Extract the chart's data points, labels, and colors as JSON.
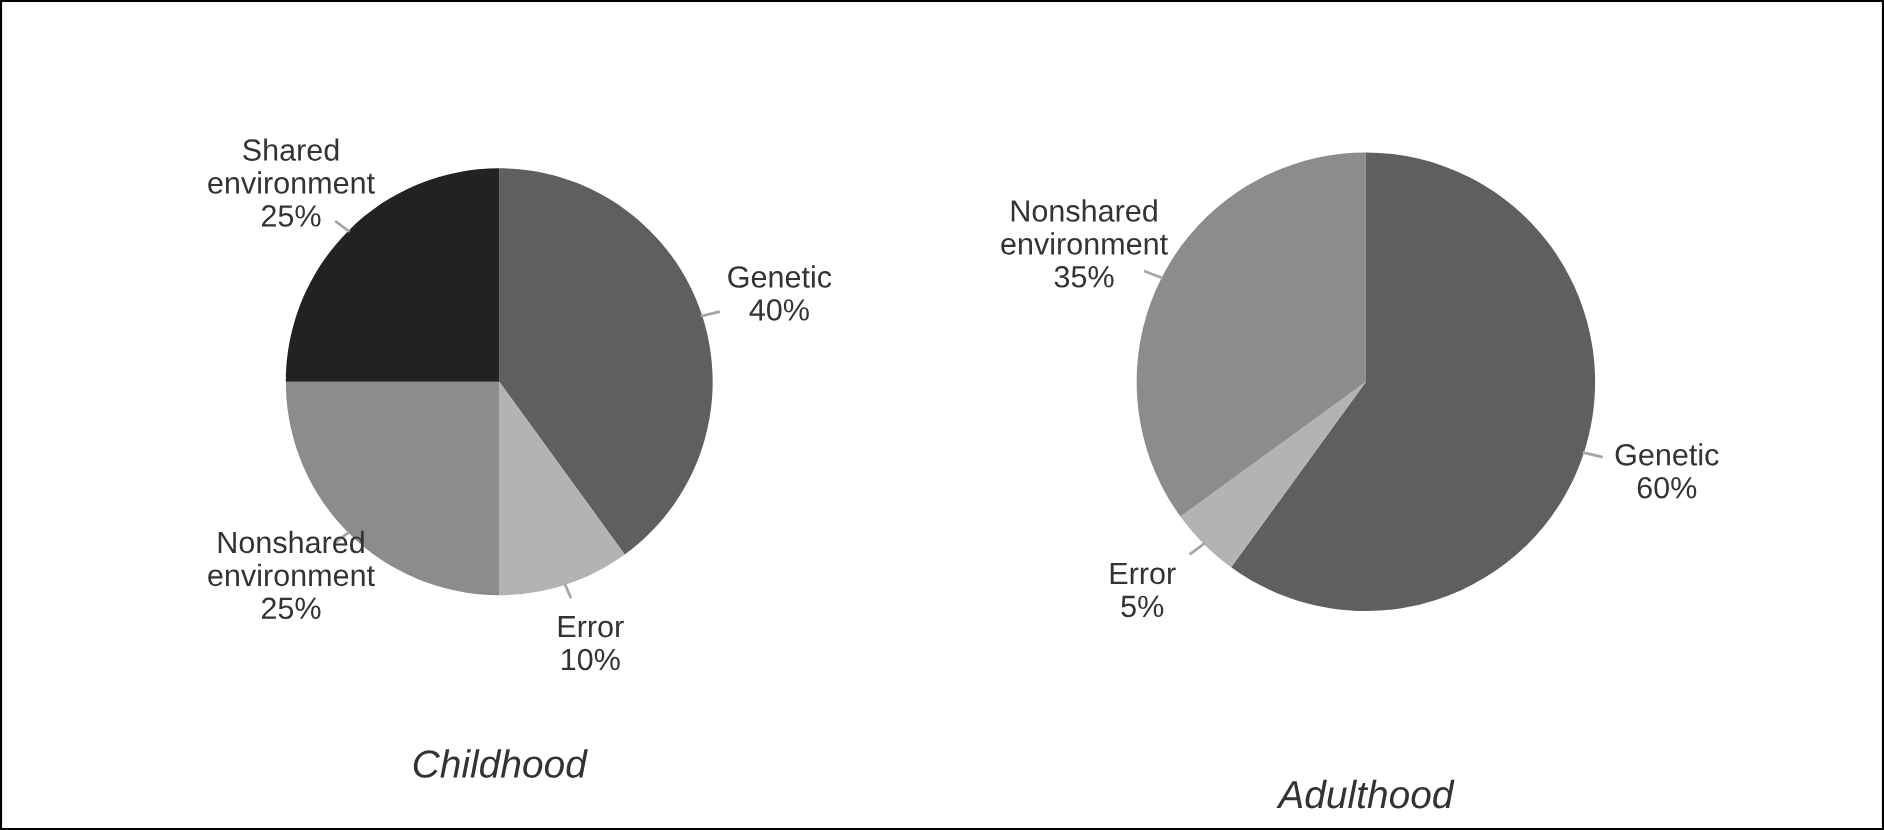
{
  "chart_data": [
    {
      "type": "pie",
      "title": "Childhood",
      "categories": [
        "Genetic",
        "Error",
        "Nonshared environment",
        "Shared environment"
      ],
      "values": [
        40,
        10,
        25,
        25
      ],
      "value_labels": [
        "40%",
        "10%",
        "25%",
        "25%"
      ],
      "colors": [
        "#5f5f5f",
        "#b3b3b3",
        "#8c8c8c",
        "#222222"
      ],
      "legend": false
    },
    {
      "type": "pie",
      "title": "Adulthood",
      "categories": [
        "Genetic",
        "Error",
        "Nonshared environment"
      ],
      "values": [
        60,
        5,
        35
      ],
      "value_labels": [
        "60%",
        "5%",
        "35%"
      ],
      "colors": [
        "#5f5f5f",
        "#b3b3b3",
        "#8c8c8c"
      ],
      "legend": false
    }
  ]
}
